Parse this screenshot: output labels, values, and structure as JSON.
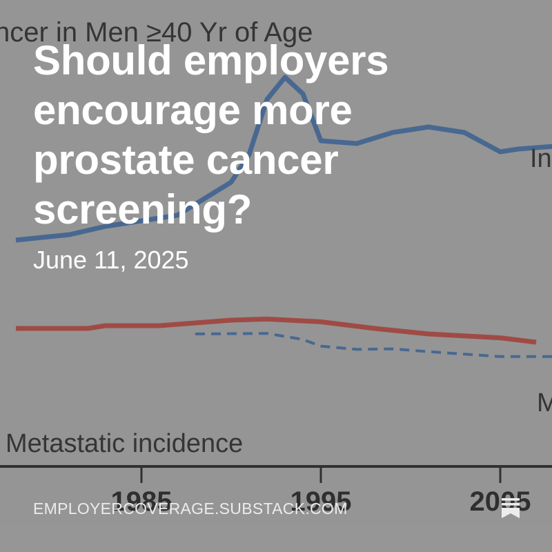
{
  "post": {
    "title": "Should employers encourage more prostate cancer screening?",
    "date": "June 11, 2025",
    "domain": "EMPLOYERCOVERAGE.SUBSTACK.COM",
    "logo_icon": "substack-bookmark-icon"
  },
  "background_chart": {
    "title_fragment": "ncer in Men ≥40 Yr of Age",
    "series_labels": {
      "incidence_fragment": "In",
      "metastatic_fragment": "M",
      "metastatic_incidence": "Metastatic incidence"
    },
    "x_ticks": [
      "1985",
      "1995",
      "2005"
    ],
    "colors": {
      "incidence": "#3e6596",
      "mortality": "#a8413a",
      "metastatic": "#3e6596"
    },
    "incidence_line": [
      [
        1978,
        0.435
      ],
      [
        1981,
        0.425
      ],
      [
        1983,
        0.41
      ],
      [
        1985,
        0.4
      ],
      [
        1987,
        0.39
      ],
      [
        1990,
        0.33
      ],
      [
        1991,
        0.28
      ],
      [
        1992,
        0.18
      ],
      [
        1993,
        0.14
      ],
      [
        1994,
        0.17
      ],
      [
        1995,
        0.255
      ],
      [
        1997,
        0.26
      ],
      [
        1999,
        0.24
      ],
      [
        2001,
        0.23
      ],
      [
        2003,
        0.24
      ],
      [
        2005,
        0.275
      ],
      [
        2006,
        0.27
      ],
      [
        2008,
        0.265
      ]
    ],
    "mortality_line": [
      [
        1978,
        0.595
      ],
      [
        1982,
        0.595
      ],
      [
        1983,
        0.59
      ],
      [
        1986,
        0.59
      ],
      [
        1990,
        0.58
      ],
      [
        1992,
        0.578
      ],
      [
        1995,
        0.583
      ],
      [
        1998,
        0.595
      ],
      [
        2001,
        0.605
      ],
      [
        2005,
        0.612
      ],
      [
        2007,
        0.62
      ]
    ],
    "metastatic_line": [
      [
        1988,
        0.605
      ],
      [
        1992,
        0.604
      ],
      [
        1994,
        0.615
      ],
      [
        1995,
        0.627
      ],
      [
        1997,
        0.633
      ],
      [
        1999,
        0.632
      ],
      [
        2001,
        0.637
      ],
      [
        2005,
        0.646
      ],
      [
        2008,
        0.646
      ]
    ]
  }
}
